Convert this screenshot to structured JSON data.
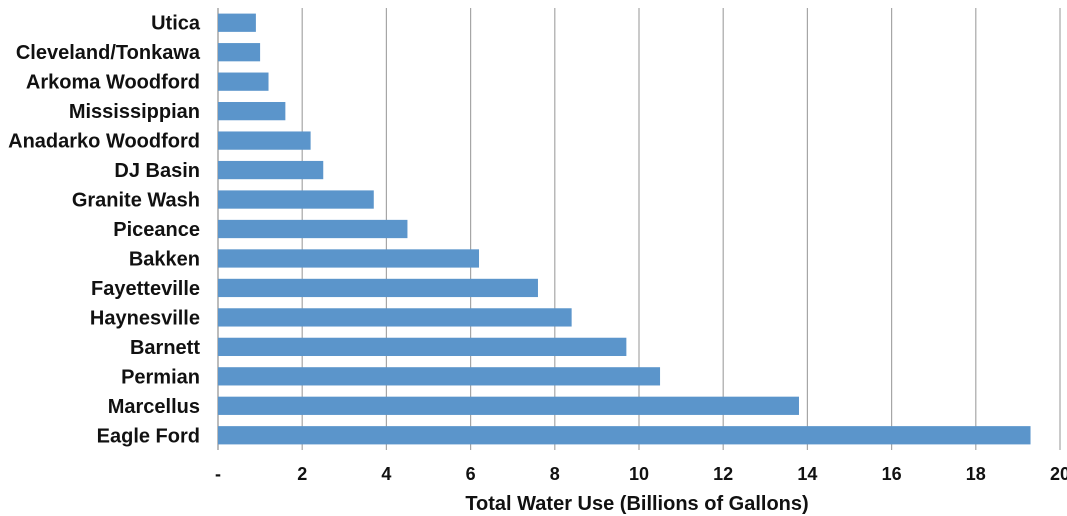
{
  "chart_data": {
    "type": "bar",
    "orientation": "horizontal",
    "title": "",
    "xlabel": "Total Water Use (Billions of Gallons)",
    "ylabel": "",
    "categories": [
      "Utica",
      "Cleveland/Tonkawa",
      "Arkoma Woodford",
      "Mississippian",
      "Anadarko Woodford",
      "DJ Basin",
      "Granite Wash",
      "Piceance",
      "Bakken",
      "Fayetteville",
      "Haynesville",
      "Barnett",
      "Permian",
      "Marcellus",
      "Eagle Ford"
    ],
    "values": [
      0.9,
      1.0,
      1.2,
      1.6,
      2.2,
      2.5,
      3.7,
      4.5,
      6.2,
      7.6,
      8.4,
      9.7,
      10.5,
      13.8,
      19.3
    ],
    "xlim": [
      0,
      20
    ],
    "ticks": [
      0,
      2,
      4,
      6,
      8,
      10,
      12,
      14,
      16,
      18,
      20
    ],
    "tick_labels": [
      "-",
      "2",
      "4",
      "6",
      "8",
      "10",
      "12",
      "14",
      "16",
      "18",
      "20"
    ],
    "grid": true,
    "bar_color": "#5b95cb",
    "grid_color": "#a6a6a6"
  }
}
